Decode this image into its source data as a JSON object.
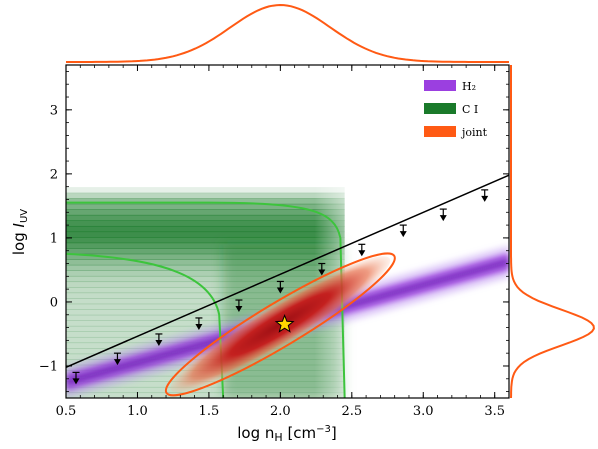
{
  "chart_data": {
    "type": "contour",
    "xlabel": "log n_H [cm^-3]",
    "ylabel": "log I_UV",
    "xlim": [
      0.5,
      3.6
    ],
    "ylim": [
      -1.5,
      3.7
    ],
    "xticks": [
      "0.5",
      "1.0",
      "1.5",
      "2.0",
      "2.5",
      "3.0",
      "3.5"
    ],
    "yticks": [
      "−1",
      "0",
      "1",
      "2",
      "3"
    ],
    "legend": {
      "position": "top-right",
      "entries": [
        {
          "label": "H₂",
          "color": "#9b3fe0"
        },
        {
          "label": "C I",
          "color": "#1a7a2a"
        },
        {
          "label": "joint",
          "color": "#ff5a14"
        }
      ]
    },
    "upper_limit_line": {
      "x": [
        0.5,
        3.6
      ],
      "y": [
        -1.02,
        1.98
      ]
    },
    "upper_limits": [
      {
        "x": 0.57,
        "y": -1.1
      },
      {
        "x": 0.86,
        "y": -0.8
      },
      {
        "x": 1.15,
        "y": -0.5
      },
      {
        "x": 1.43,
        "y": -0.25
      },
      {
        "x": 1.71,
        "y": 0.03
      },
      {
        "x": 2.0,
        "y": 0.32
      },
      {
        "x": 2.29,
        "y": 0.6
      },
      {
        "x": 2.57,
        "y": 0.9
      },
      {
        "x": 2.86,
        "y": 1.2
      },
      {
        "x": 3.14,
        "y": 1.45
      },
      {
        "x": 3.43,
        "y": 1.75
      }
    ],
    "h2_band": {
      "x": [
        0.5,
        3.6
      ],
      "y": [
        -1.25,
        0.63
      ],
      "width": 0.12
    },
    "ci_region": {
      "x_max": 2.45,
      "y_max": 1.55,
      "y_center": 1.1
    },
    "ci_contour": {
      "x_vertical": 1.6,
      "y_horizontal": 0.75
    },
    "joint_ellipse": {
      "center": [
        2.0,
        -0.35
      ],
      "semi_major": 0.93,
      "semi_minor": 0.14,
      "angle_deg": 31
    },
    "best_fit": {
      "x": 2.03,
      "y": -0.35
    },
    "marginal_x": {
      "mean": 2.0,
      "sigma": 0.35
    },
    "marginal_y": {
      "mean": -0.4,
      "sigma": 0.28
    },
    "colors": {
      "h2": "#9b3fe0",
      "ci": "#1a7a2a",
      "ci_contour": "#3cc43c",
      "joint": "#ff5a14",
      "joint_fill": "#b8141c",
      "star": "#ffd800"
    }
  }
}
